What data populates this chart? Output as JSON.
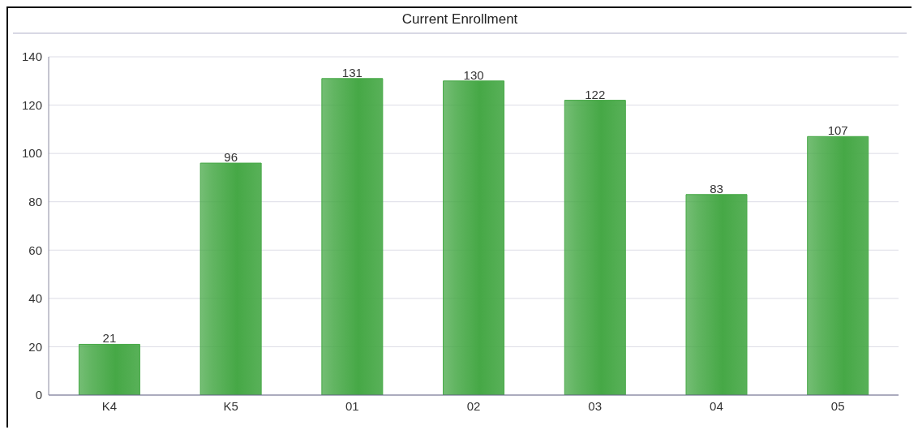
{
  "chart_data": {
    "type": "bar",
    "title": "Current Enrollment",
    "categories": [
      "K4",
      "K5",
      "01",
      "02",
      "03",
      "04",
      "05"
    ],
    "values": [
      21,
      96,
      131,
      130,
      122,
      83,
      107
    ],
    "color": "#46a846",
    "ylim": [
      0,
      140
    ],
    "yticks": [
      0,
      20,
      40,
      60,
      80,
      100,
      120,
      140
    ],
    "grid": "y",
    "data_labels": true,
    "legend": false
  }
}
